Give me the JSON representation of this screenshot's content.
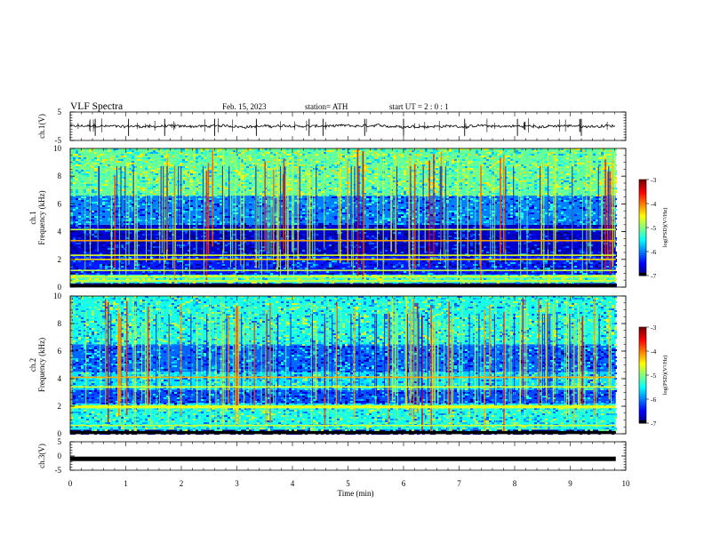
{
  "header": {
    "title": "VLF  Spectra",
    "date": "Feb. 15, 2023",
    "station": "station= ATH",
    "start": "start  UT  =    2  : 0   : 1"
  },
  "chart_data": [
    {
      "id": "ch1-waveform",
      "type": "line",
      "ylabel": "ch.1(V)",
      "ylim": [
        -5,
        5
      ],
      "y_ticks": [
        "5",
        "-5"
      ],
      "xlim": [
        0,
        10
      ],
      "baseline": 0,
      "spikes_min": [
        0.45,
        1.05,
        1.7,
        2.6,
        3.35,
        4.3,
        4.55,
        5.3,
        6.0,
        7.1,
        8.05,
        9.2
      ],
      "color": "#000000"
    },
    {
      "id": "ch1-spectrogram",
      "type": "heatmap",
      "ylabel": "ch.1\nFrequency (kHz)",
      "ylim": [
        0,
        10
      ],
      "y_ticks": [
        "0",
        "2",
        "4",
        "6",
        "8",
        "10"
      ],
      "xlim": [
        0,
        10
      ],
      "colorbar": {
        "label": "log(PSD)(V²/Hz)",
        "range": [
          -7,
          -3
        ],
        "ticks": [
          "-3",
          "-4",
          "-5",
          "-6",
          "-7"
        ]
      },
      "bands_khz": [
        {
          "from": 0.0,
          "to": 0.3,
          "level": -7.0
        },
        {
          "from": 0.3,
          "to": 0.9,
          "level": -5.2
        },
        {
          "from": 0.9,
          "to": 2.3,
          "level": -6.4
        },
        {
          "from": 2.3,
          "to": 4.5,
          "level": -6.7
        },
        {
          "from": 4.5,
          "to": 6.6,
          "level": -6.0
        },
        {
          "from": 6.6,
          "to": 10.0,
          "level": -5.1
        }
      ],
      "tone_lines_khz": [
        0.45,
        0.75,
        1.2,
        2.0,
        2.3,
        3.35,
        4.15
      ]
    },
    {
      "id": "ch2-spectrogram",
      "type": "heatmap",
      "ylabel": "ch.2\nFrequency (kHz)",
      "ylim": [
        0,
        10
      ],
      "y_ticks": [
        "0",
        "2",
        "4",
        "6",
        "8",
        "10"
      ],
      "xlim": [
        0,
        10
      ],
      "colorbar": {
        "label": "log(PSD)(V²/Hz)",
        "range": [
          -7,
          -3
        ],
        "ticks": [
          "-3",
          "-4",
          "-5",
          "-6",
          "-7"
        ]
      },
      "bands_khz": [
        {
          "from": 0.0,
          "to": 0.3,
          "level": -7.0
        },
        {
          "from": 0.3,
          "to": 2.2,
          "level": -5.4
        },
        {
          "from": 2.2,
          "to": 3.2,
          "level": -6.2
        },
        {
          "from": 3.2,
          "to": 4.5,
          "level": -5.6
        },
        {
          "from": 4.5,
          "to": 6.5,
          "level": -6.1
        },
        {
          "from": 6.5,
          "to": 10.0,
          "level": -5.4
        }
      ],
      "tone_lines_khz": [
        0.6,
        1.9,
        2.0,
        3.4,
        4.1
      ]
    },
    {
      "id": "ch3-waveform",
      "type": "line",
      "ylabel": "ch.3(V)",
      "ylim": [
        -5,
        5
      ],
      "y_ticks": [
        "5",
        "0",
        "-5"
      ],
      "xlim": [
        0,
        10
      ],
      "baseline": -1.0,
      "color": "#000000"
    }
  ],
  "x_axis": {
    "label": "Time  (min)",
    "range": [
      0,
      10
    ],
    "data_extent": [
      0,
      9.82
    ],
    "ticks": [
      "0",
      "1",
      "2",
      "3",
      "4",
      "5",
      "6",
      "7",
      "8",
      "9",
      "10"
    ]
  }
}
